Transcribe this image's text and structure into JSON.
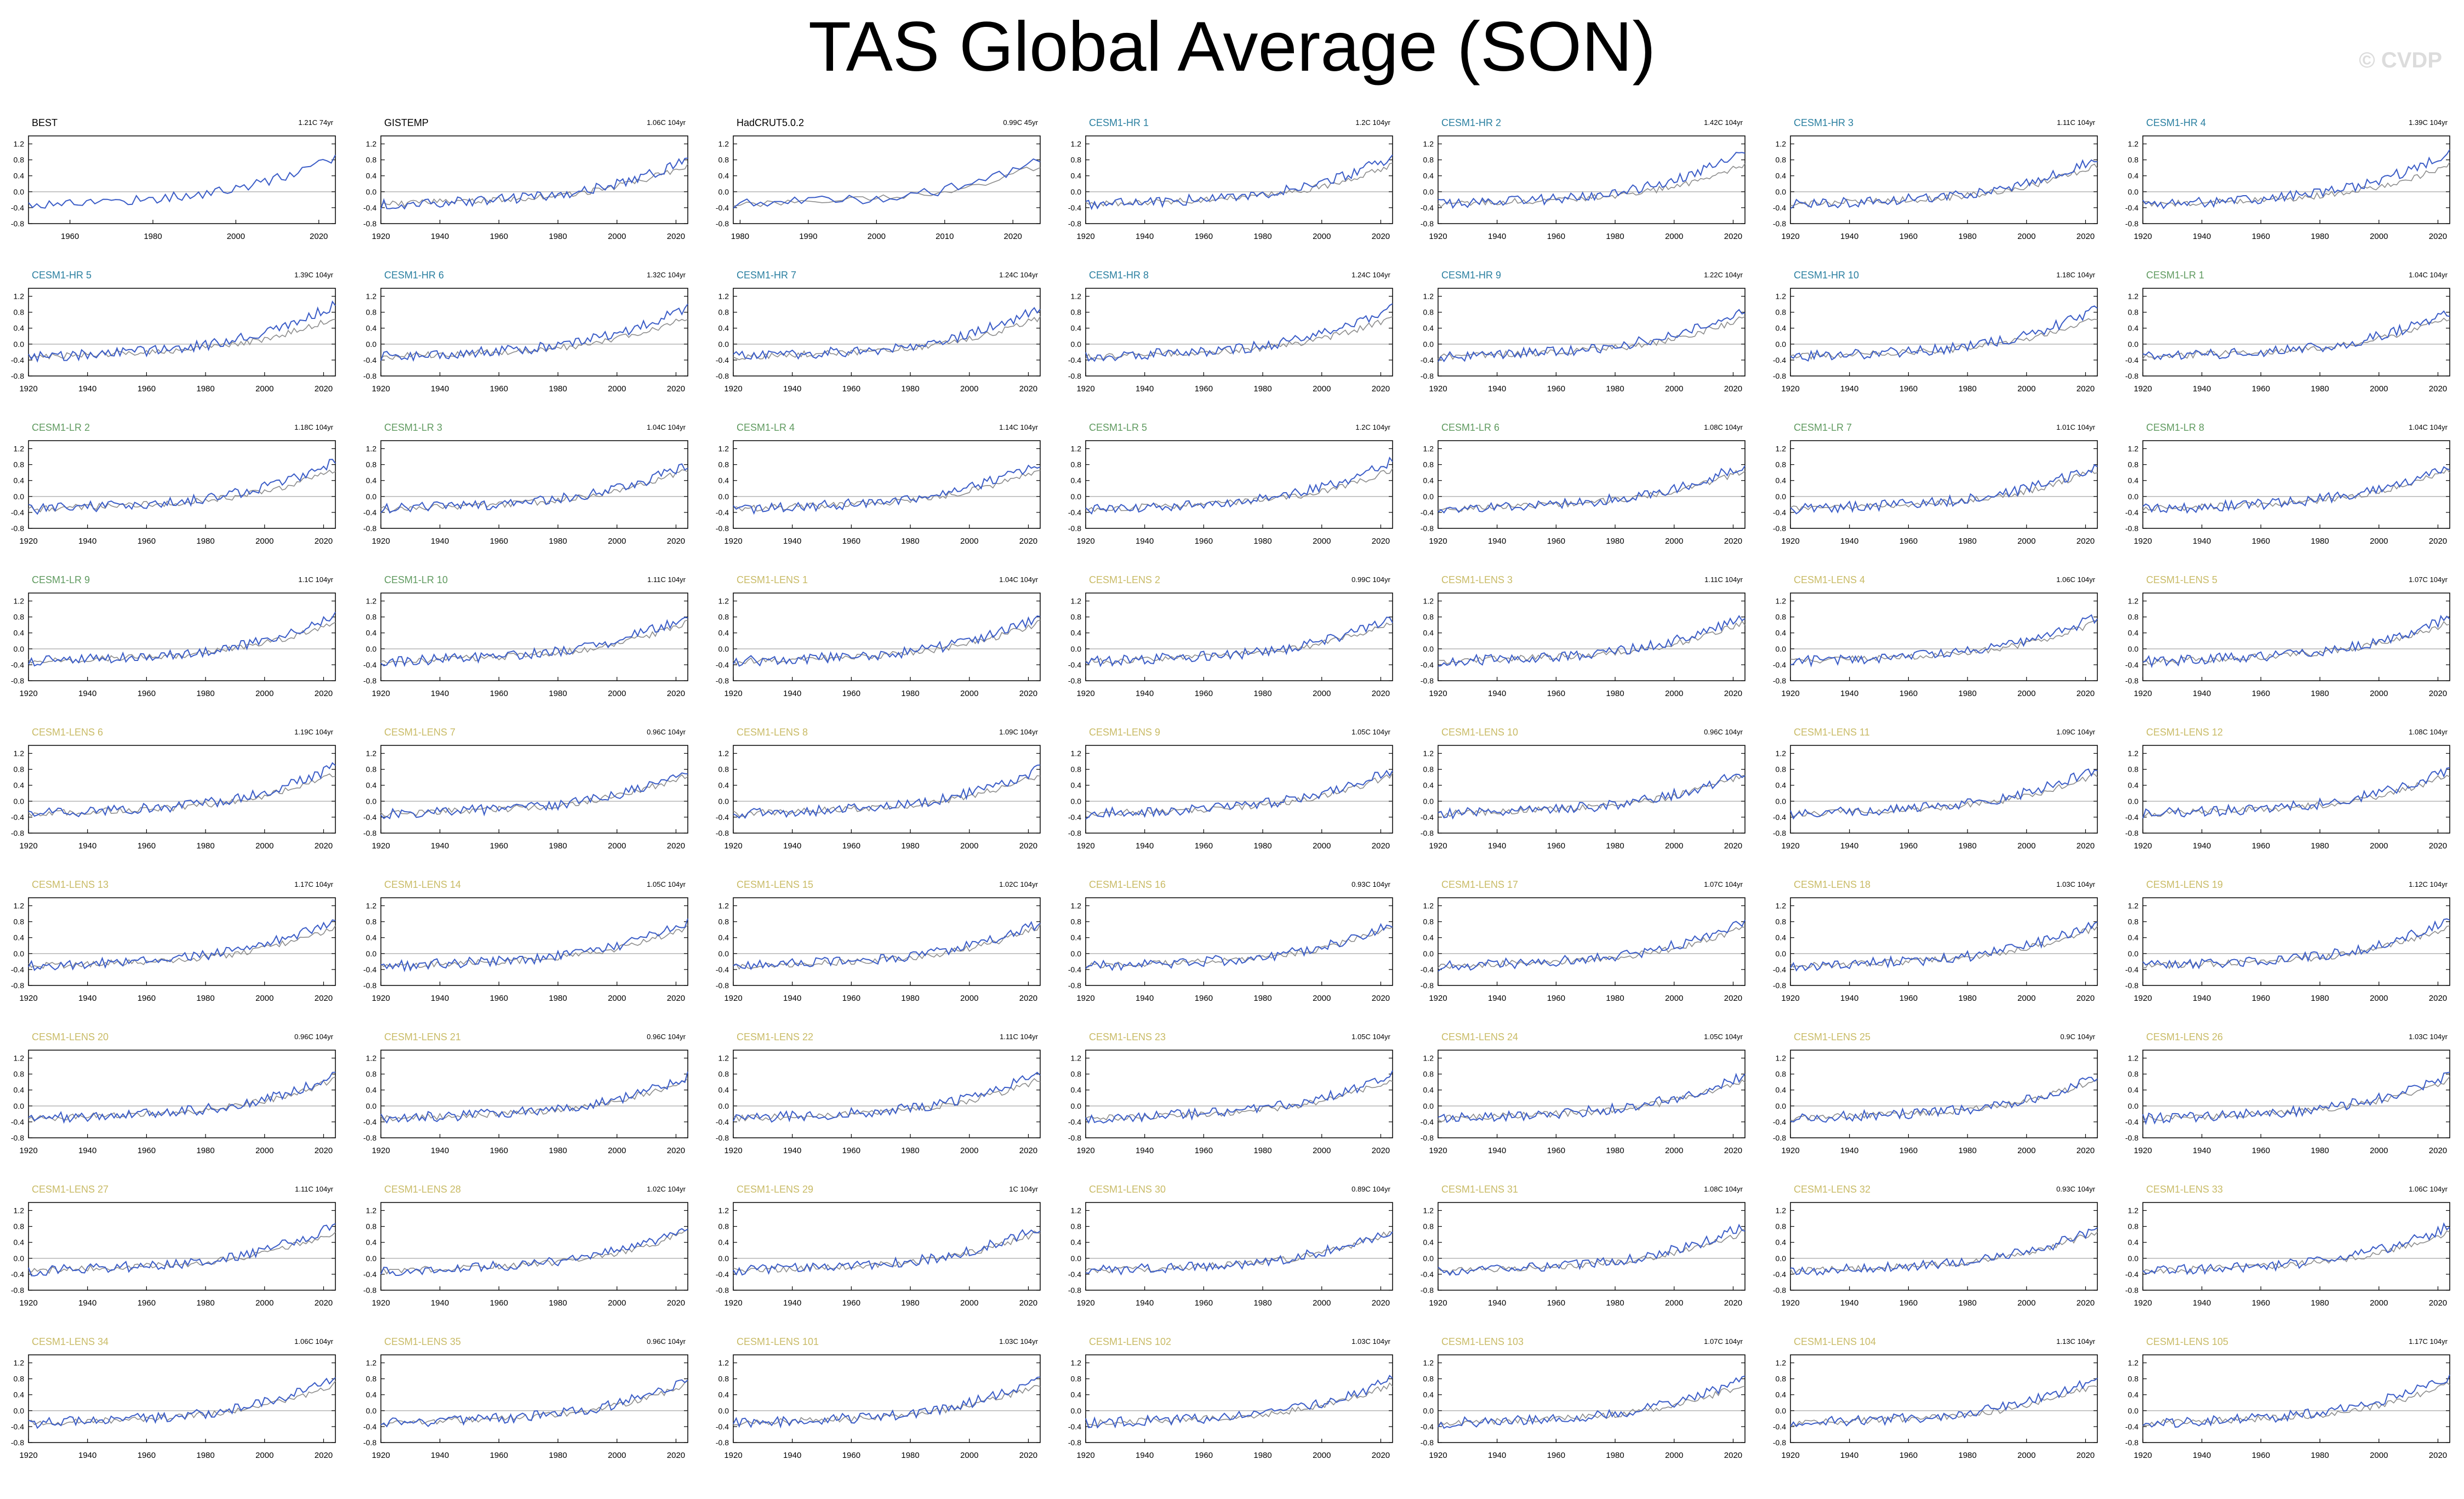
{
  "title": "TAS Global Average (SON)",
  "watermark": "© CVDP",
  "colors": {
    "model_line": "#3a5cc7",
    "obs_line": "#8c8c8c",
    "zero_line": "#b4b4b4",
    "label_obs": "#000000",
    "label_hr": "#2a7fa0",
    "label_lr": "#5f9a5f",
    "label_lens": "#c9bb66"
  },
  "chart_data": {
    "type": "line",
    "ylim": [
      -0.8,
      1.4
    ],
    "yticks": [
      "1.2",
      "0.8",
      "0.4",
      "0.0",
      "-0.4",
      "-0.8"
    ],
    "yticks_obs3": [
      "1.2",
      "0.8",
      "0.4",
      "0.0",
      "-0.4",
      "-0.8"
    ],
    "xticks_default": [
      "1920",
      "1940",
      "1960",
      "1980",
      "2000",
      "2020"
    ],
    "xticks_best": [
      "1960",
      "1980",
      "2000",
      "2020"
    ],
    "xticks_hadcrut": [
      "1980",
      "1990",
      "2000",
      "2010",
      "2020"
    ],
    "panels": [
      {
        "name": "BEST",
        "trend": "1.21C 74yr",
        "group": "obs",
        "start": 1950,
        "xt": "best"
      },
      {
        "name": "GISTEMP",
        "trend": "1.06C 104yr",
        "group": "obs"
      },
      {
        "name": "HadCRUT5.0.2",
        "trend": "0.99C 45yr",
        "group": "obs",
        "start": 1979,
        "xt": "hadcrut"
      },
      {
        "name": "CESM1-HR 1",
        "trend": "1.2C 104yr",
        "group": "hr"
      },
      {
        "name": "CESM1-HR 2",
        "trend": "1.42C 104yr",
        "group": "hr"
      },
      {
        "name": "CESM1-HR 3",
        "trend": "1.11C 104yr",
        "group": "hr"
      },
      {
        "name": "CESM1-HR 4",
        "trend": "1.39C 104yr",
        "group": "hr"
      },
      {
        "name": "CESM1-HR 5",
        "trend": "1.39C 104yr",
        "group": "hr"
      },
      {
        "name": "CESM1-HR 6",
        "trend": "1.32C 104yr",
        "group": "hr"
      },
      {
        "name": "CESM1-HR 7",
        "trend": "1.24C 104yr",
        "group": "hr"
      },
      {
        "name": "CESM1-HR 8",
        "trend": "1.24C 104yr",
        "group": "hr"
      },
      {
        "name": "CESM1-HR 9",
        "trend": "1.22C 104yr",
        "group": "hr"
      },
      {
        "name": "CESM1-HR 10",
        "trend": "1.18C 104yr",
        "group": "hr"
      },
      {
        "name": "CESM1-LR 1",
        "trend": "1.04C 104yr",
        "group": "lr"
      },
      {
        "name": "CESM1-LR 2",
        "trend": "1.18C 104yr",
        "group": "lr"
      },
      {
        "name": "CESM1-LR 3",
        "trend": "1.04C 104yr",
        "group": "lr"
      },
      {
        "name": "CESM1-LR 4",
        "trend": "1.14C 104yr",
        "group": "lr"
      },
      {
        "name": "CESM1-LR 5",
        "trend": "1.2C 104yr",
        "group": "lr"
      },
      {
        "name": "CESM1-LR 6",
        "trend": "1.08C 104yr",
        "group": "lr"
      },
      {
        "name": "CESM1-LR 7",
        "trend": "1.01C 104yr",
        "group": "lr"
      },
      {
        "name": "CESM1-LR 8",
        "trend": "1.04C 104yr",
        "group": "lr"
      },
      {
        "name": "CESM1-LR 9",
        "trend": "1.1C 104yr",
        "group": "lr"
      },
      {
        "name": "CESM1-LR 10",
        "trend": "1.11C 104yr",
        "group": "lr"
      },
      {
        "name": "CESM1-LENS 1",
        "trend": "1.04C 104yr",
        "group": "lens"
      },
      {
        "name": "CESM1-LENS 2",
        "trend": "0.99C 104yr",
        "group": "lens"
      },
      {
        "name": "CESM1-LENS 3",
        "trend": "1.11C 104yr",
        "group": "lens"
      },
      {
        "name": "CESM1-LENS 4",
        "trend": "1.06C 104yr",
        "group": "lens"
      },
      {
        "name": "CESM1-LENS 5",
        "trend": "1.07C 104yr",
        "group": "lens"
      },
      {
        "name": "CESM1-LENS 6",
        "trend": "1.19C 104yr",
        "group": "lens"
      },
      {
        "name": "CESM1-LENS 7",
        "trend": "0.96C 104yr",
        "group": "lens"
      },
      {
        "name": "CESM1-LENS 8",
        "trend": "1.09C 104yr",
        "group": "lens"
      },
      {
        "name": "CESM1-LENS 9",
        "trend": "1.05C 104yr",
        "group": "lens"
      },
      {
        "name": "CESM1-LENS 10",
        "trend": "0.96C 104yr",
        "group": "lens"
      },
      {
        "name": "CESM1-LENS 11",
        "trend": "1.09C 104yr",
        "group": "lens"
      },
      {
        "name": "CESM1-LENS 12",
        "trend": "1.08C 104yr",
        "group": "lens"
      },
      {
        "name": "CESM1-LENS 13",
        "trend": "1.17C 104yr",
        "group": "lens"
      },
      {
        "name": "CESM1-LENS 14",
        "trend": "1.05C 104yr",
        "group": "lens"
      },
      {
        "name": "CESM1-LENS 15",
        "trend": "1.02C 104yr",
        "group": "lens"
      },
      {
        "name": "CESM1-LENS 16",
        "trend": "0.93C 104yr",
        "group": "lens"
      },
      {
        "name": "CESM1-LENS 17",
        "trend": "1.07C 104yr",
        "group": "lens"
      },
      {
        "name": "CESM1-LENS 18",
        "trend": "1.03C 104yr",
        "group": "lens"
      },
      {
        "name": "CESM1-LENS 19",
        "trend": "1.12C 104yr",
        "group": "lens"
      },
      {
        "name": "CESM1-LENS 20",
        "trend": "0.96C 104yr",
        "group": "lens"
      },
      {
        "name": "CESM1-LENS 21",
        "trend": "0.96C 104yr",
        "group": "lens"
      },
      {
        "name": "CESM1-LENS 22",
        "trend": "1.11C 104yr",
        "group": "lens"
      },
      {
        "name": "CESM1-LENS 23",
        "trend": "1.05C 104yr",
        "group": "lens"
      },
      {
        "name": "CESM1-LENS 24",
        "trend": "1.05C 104yr",
        "group": "lens"
      },
      {
        "name": "CESM1-LENS 25",
        "trend": "0.9C 104yr",
        "group": "lens"
      },
      {
        "name": "CESM1-LENS 26",
        "trend": "1.03C 104yr",
        "group": "lens"
      },
      {
        "name": "CESM1-LENS 27",
        "trend": "1.11C 104yr",
        "group": "lens"
      },
      {
        "name": "CESM1-LENS 28",
        "trend": "1.02C 104yr",
        "group": "lens"
      },
      {
        "name": "CESM1-LENS 29",
        "trend": "1C 104yr",
        "group": "lens"
      },
      {
        "name": "CESM1-LENS 30",
        "trend": "0.89C 104yr",
        "group": "lens"
      },
      {
        "name": "CESM1-LENS 31",
        "trend": "1.08C 104yr",
        "group": "lens"
      },
      {
        "name": "CESM1-LENS 32",
        "trend": "0.93C 104yr",
        "group": "lens"
      },
      {
        "name": "CESM1-LENS 33",
        "trend": "1.06C 104yr",
        "group": "lens"
      },
      {
        "name": "CESM1-LENS 34",
        "trend": "1.06C 104yr",
        "group": "lens"
      },
      {
        "name": "CESM1-LENS 35",
        "trend": "0.96C 104yr",
        "group": "lens"
      },
      {
        "name": "CESM1-LENS 101",
        "trend": "1.03C 104yr",
        "group": "lens"
      },
      {
        "name": "CESM1-LENS 102",
        "trend": "1.03C 104yr",
        "group": "lens"
      },
      {
        "name": "CESM1-LENS 103",
        "trend": "1.07C 104yr",
        "group": "lens"
      },
      {
        "name": "CESM1-LENS 104",
        "trend": "1.13C 104yr",
        "group": "lens"
      },
      {
        "name": "CESM1-LENS 105",
        "trend": "1.17C 104yr",
        "group": "lens"
      }
    ]
  }
}
